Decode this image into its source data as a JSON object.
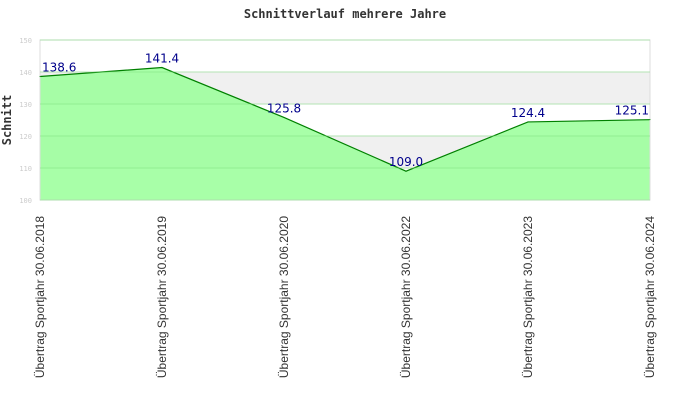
{
  "chart_data": {
    "type": "area",
    "title": "Schnittverlauf mehrere Jahre",
    "xlabel": "",
    "ylabel": "Schnitt",
    "ylim": [
      100,
      150
    ],
    "yticks": [
      100,
      110,
      120,
      130,
      140,
      150
    ],
    "categories": [
      "Übertrag Sportjahr 30.06.2018",
      "Übertrag Sportjahr 30.06.2019",
      "Übertrag Sportjahr 30.06.2020",
      "Übertrag Sportjahr 30.06.2022",
      "Übertrag Sportjahr 30.06.2023",
      "Übertrag Sportjahr 30.06.2024"
    ],
    "series": [
      {
        "name": "Schnitt",
        "values": [
          138.6,
          141.4,
          125.8,
          109.0,
          124.4,
          125.1
        ]
      }
    ],
    "labels": [
      "138.6",
      "141.4",
      "125.8",
      "109.0",
      "124.4",
      "125.1"
    ],
    "colors": {
      "line": "#008000",
      "fill": "#99ff99",
      "label": "#00008b"
    }
  }
}
